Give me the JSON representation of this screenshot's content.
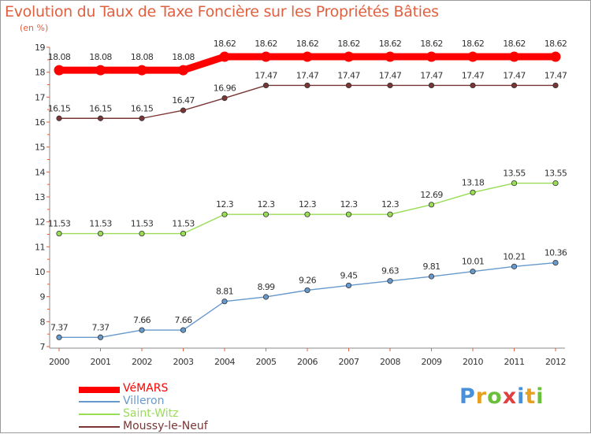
{
  "chart_data": {
    "type": "line",
    "title": "Evolution du Taux de Taxe Foncière sur les Propriétés Bâties",
    "unit_label": "(en %)",
    "xlabel": "",
    "ylabel": "",
    "ylim": [
      7,
      19
    ],
    "yticks": [
      "7",
      "8",
      "9",
      "10",
      "11",
      "12",
      "13",
      "14",
      "15",
      "16",
      "17",
      "18",
      "19"
    ],
    "categories": [
      "2000",
      "2001",
      "2002",
      "2003",
      "2004",
      "2005",
      "2006",
      "2007",
      "2008",
      "2009",
      "2010",
      "2011",
      "2012"
    ],
    "legend_position": "bottom-left",
    "series": [
      {
        "name": "VéMARS",
        "color": "#ff0000",
        "values": [
          18.08,
          18.08,
          18.08,
          18.08,
          18.62,
          18.62,
          18.62,
          18.62,
          18.62,
          18.62,
          18.62,
          18.62,
          18.62
        ],
        "labels": [
          "18.08",
          "18.08",
          "18.08",
          "18.08",
          "18.62",
          "18.62",
          "18.62",
          "18.62",
          "18.62",
          "18.62",
          "18.62",
          "18.62",
          "18.62"
        ]
      },
      {
        "name": "Villeron",
        "color": "#6699cc",
        "values": [
          7.37,
          7.37,
          7.66,
          7.66,
          8.81,
          8.99,
          9.26,
          9.45,
          9.63,
          9.81,
          10.01,
          10.21,
          10.36
        ],
        "labels": [
          "7.37",
          "7.37",
          "7.66",
          "7.66",
          "8.81",
          "8.99",
          "9.26",
          "9.45",
          "9.63",
          "9.81",
          "10.01",
          "10.21",
          "10.36"
        ]
      },
      {
        "name": "Saint-Witz",
        "color": "#99dd55",
        "values": [
          11.53,
          11.53,
          11.53,
          11.53,
          12.3,
          12.3,
          12.3,
          12.3,
          12.3,
          12.69,
          13.18,
          13.55,
          13.55
        ],
        "labels": [
          "11.53",
          "11.53",
          "11.53",
          "11.53",
          "12.3",
          "12.3",
          "12.3",
          "12.3",
          "12.3",
          "12.69",
          "13.18",
          "13.55",
          "13.55"
        ]
      },
      {
        "name": "Moussy-le-Neuf",
        "color": "#7a3535",
        "values": [
          16.15,
          16.15,
          16.15,
          16.47,
          16.96,
          17.47,
          17.47,
          17.47,
          17.47,
          17.47,
          17.47,
          17.47,
          17.47
        ],
        "labels": [
          "16.15",
          "16.15",
          "16.15",
          "16.47",
          "16.96",
          "17.47",
          "17.47",
          "17.47",
          "17.47",
          "17.47",
          "17.47",
          "17.47",
          "17.47"
        ]
      }
    ]
  },
  "logo": {
    "text": "Proxiti",
    "letters": [
      "P",
      "r",
      "o",
      "x",
      "i",
      "t",
      "i"
    ],
    "colors": [
      "#4a90d9",
      "#e8a020",
      "#6cbf3a",
      "#e04040",
      "#4a90d9",
      "#e8a020",
      "#6cbf3a"
    ]
  }
}
